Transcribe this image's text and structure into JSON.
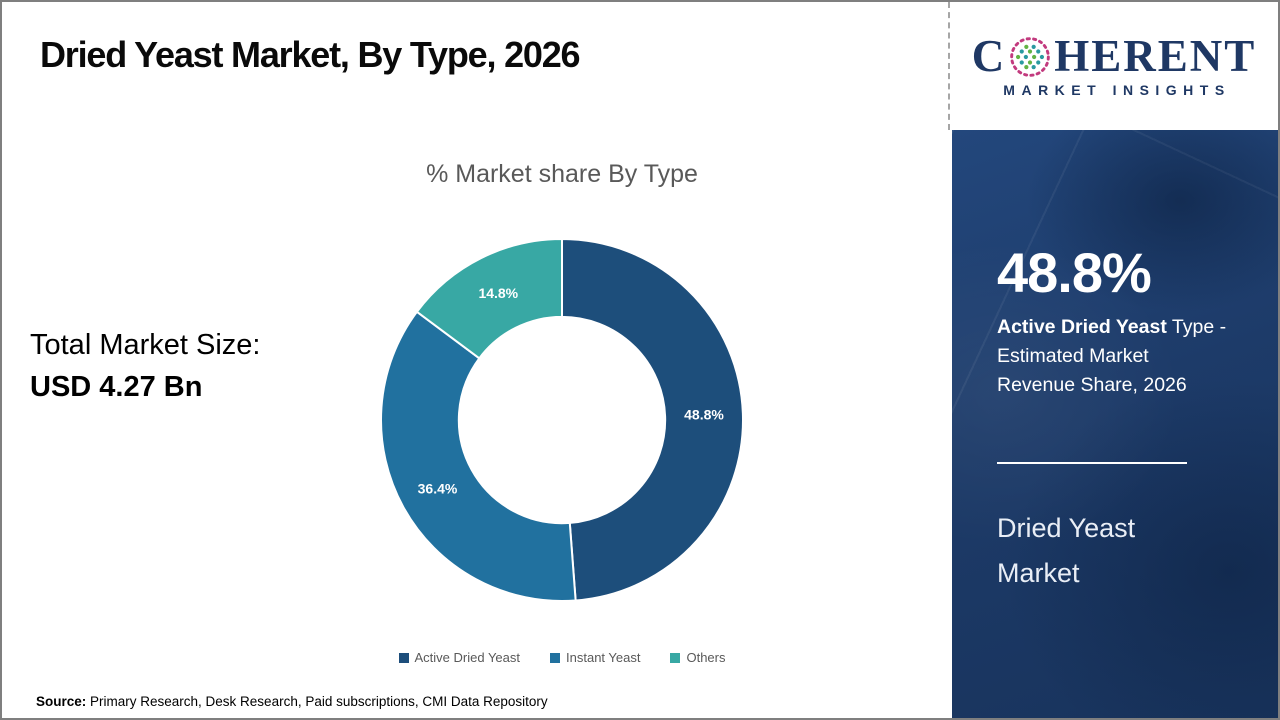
{
  "page": {
    "title": "Dried Yeast Market, By Type, 2026",
    "source_label": "Source:",
    "source_text": " Primary Research, Desk Research, Paid subscriptions, CMI Data Repository"
  },
  "logo": {
    "brand_prefix": "C",
    "brand_suffix": "HERENT",
    "subtitle": "MARKET INSIGHTS",
    "globe_icon": "dotted-globe",
    "brand_color": "#1f3864"
  },
  "left_panel": {
    "total_label": "Total Market Size:",
    "total_value": "USD 4.27 Bn"
  },
  "chart_data": {
    "type": "pie",
    "donut": true,
    "title": "% Market share By Type",
    "categories": [
      "Active Dried Yeast",
      "Instant Yeast",
      "Others"
    ],
    "values": [
      48.8,
      36.4,
      14.8
    ],
    "slice_labels": [
      "48.8%",
      "36.4%",
      "14.8%"
    ],
    "colors": [
      "#1d4e7b",
      "#21719f",
      "#38a8a4"
    ],
    "start_angle_deg": 0,
    "inner_radius_ratio": 0.57,
    "legend_position": "bottom"
  },
  "sidebar": {
    "bg_color": "#1d3b69",
    "stat_value": "48.8%",
    "desc_bold": "Active Dried Yeast",
    "desc_rest_line1": " Type -",
    "desc_line2": "Estimated Market",
    "desc_line3": "Revenue Share, 2026",
    "panel_title_line1": "Dried Yeast",
    "panel_title_line2": "Market"
  }
}
